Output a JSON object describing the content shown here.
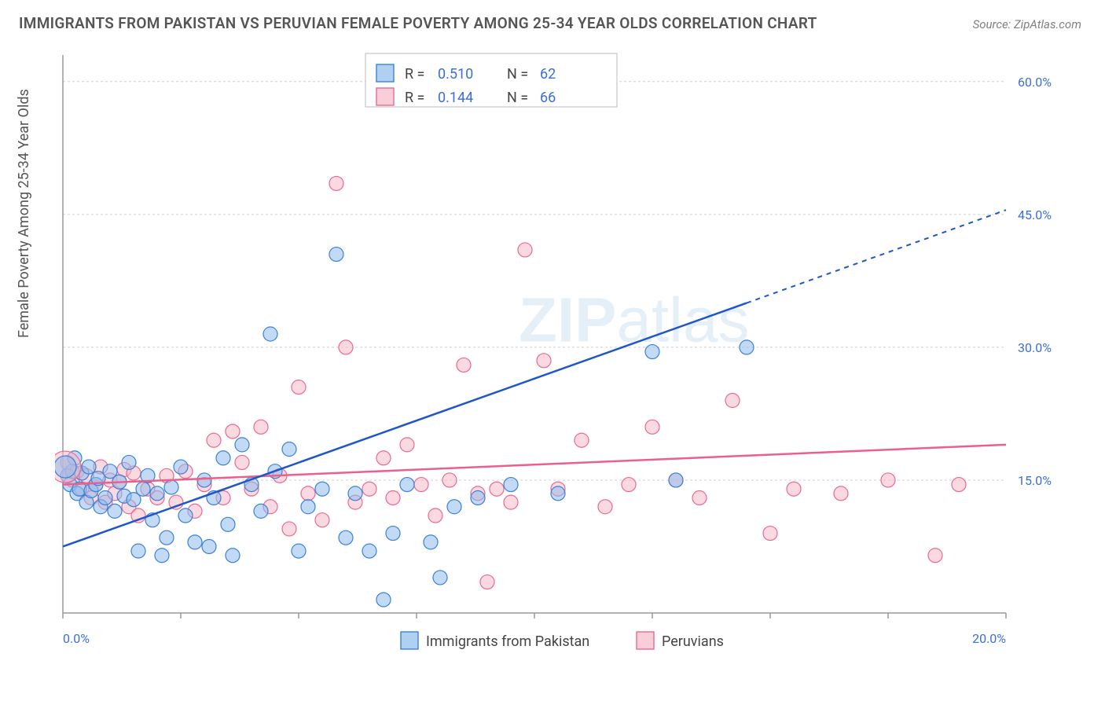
{
  "title": "IMMIGRANTS FROM PAKISTAN VS PERUVIAN FEMALE POVERTY AMONG 25-34 YEAR OLDS CORRELATION CHART",
  "source": "Source: ZipAtlas.com",
  "ylabel": "Female Poverty Among 25-34 Year Olds",
  "watermark": {
    "bold": "ZIP",
    "thin": "atlas"
  },
  "colors": {
    "blue_marker_fill": "#8fbced",
    "blue_marker_stroke": "#3b82d6",
    "pink_marker_fill": "#f7b9c9",
    "pink_marker_stroke": "#e86a94",
    "blue_line": "#1f57c9",
    "pink_line": "#ec5f8b",
    "tick_label": "#3b6fd6",
    "grid": "#d0d0d0",
    "axis": "#999999",
    "title_color": "#555555",
    "background": "#ffffff"
  },
  "chart": {
    "type": "scatter",
    "xlim": [
      0,
      20
    ],
    "ylim": [
      0,
      63
    ],
    "xticks": [
      0,
      2.5,
      5,
      7.5,
      10,
      12.5,
      15,
      17.5,
      20
    ],
    "xticklabels": [
      "0.0%",
      "",
      "",
      "",
      "",
      "",
      "",
      "",
      "20.0%"
    ],
    "yticks": [
      15,
      30,
      45,
      60
    ],
    "yticklabels": [
      "15.0%",
      "30.0%",
      "45.0%",
      "60.0%"
    ],
    "marker_radius": 9,
    "font_size_tick": 16,
    "font_size_label": 18,
    "font_size_title": 19
  },
  "legend_top": {
    "rows": [
      {
        "swatch": "blue",
        "rlabel": "R =",
        "rval": "0.510",
        "nlabel": "N =",
        "nval": "62"
      },
      {
        "swatch": "pink",
        "rlabel": "R =",
        "rval": "0.144",
        "nlabel": "N =",
        "nval": "66"
      }
    ]
  },
  "legend_bottom": {
    "items": [
      {
        "swatch": "blue",
        "label": "Immigrants from Pakistan"
      },
      {
        "swatch": "pink",
        "label": "Peruvians"
      }
    ]
  },
  "series_blue": {
    "name": "Immigrants from Pakistan",
    "points": [
      [
        0.1,
        15.5
      ],
      [
        0.15,
        14.5
      ],
      [
        0.2,
        16.0
      ],
      [
        0.25,
        17.5
      ],
      [
        0.3,
        13.5
      ],
      [
        0.35,
        14.0
      ],
      [
        0.4,
        15.8
      ],
      [
        0.5,
        12.5
      ],
      [
        0.55,
        16.5
      ],
      [
        0.6,
        13.8
      ],
      [
        0.7,
        14.5
      ],
      [
        0.75,
        15.2
      ],
      [
        0.8,
        12.0
      ],
      [
        0.9,
        13.0
      ],
      [
        1.0,
        16.0
      ],
      [
        1.1,
        11.5
      ],
      [
        1.2,
        14.8
      ],
      [
        1.3,
        13.2
      ],
      [
        1.4,
        17.0
      ],
      [
        1.5,
        12.8
      ],
      [
        1.6,
        7.0
      ],
      [
        1.7,
        14.0
      ],
      [
        1.8,
        15.5
      ],
      [
        1.9,
        10.5
      ],
      [
        2.0,
        13.5
      ],
      [
        2.1,
        6.5
      ],
      [
        2.2,
        8.5
      ],
      [
        2.3,
        14.2
      ],
      [
        2.5,
        16.5
      ],
      [
        2.6,
        11.0
      ],
      [
        2.8,
        8.0
      ],
      [
        3.0,
        15.0
      ],
      [
        3.1,
        7.5
      ],
      [
        3.2,
        13.0
      ],
      [
        3.4,
        17.5
      ],
      [
        3.5,
        10.0
      ],
      [
        3.6,
        6.5
      ],
      [
        3.8,
        19.0
      ],
      [
        4.0,
        14.5
      ],
      [
        4.2,
        11.5
      ],
      [
        4.4,
        31.5
      ],
      [
        4.5,
        16.0
      ],
      [
        4.8,
        18.5
      ],
      [
        5.0,
        7.0
      ],
      [
        5.2,
        12.0
      ],
      [
        5.5,
        14.0
      ],
      [
        5.8,
        40.5
      ],
      [
        6.0,
        8.5
      ],
      [
        6.2,
        13.5
      ],
      [
        6.5,
        7.0
      ],
      [
        6.8,
        1.5
      ],
      [
        7.0,
        9.0
      ],
      [
        7.3,
        14.5
      ],
      [
        7.8,
        8.0
      ],
      [
        8.0,
        4.0
      ],
      [
        8.3,
        12.0
      ],
      [
        8.8,
        13.0
      ],
      [
        9.5,
        14.5
      ],
      [
        10.5,
        13.5
      ],
      [
        12.5,
        29.5
      ],
      [
        13.0,
        15.0
      ],
      [
        14.5,
        30.0
      ]
    ],
    "trendline": {
      "x1": 0,
      "y1": 7.5,
      "x2": 14.5,
      "y2": 35.0,
      "x2_dash": 20,
      "y2_dash": 45.5
    }
  },
  "series_pink": {
    "name": "Peruvians",
    "points": [
      [
        0.1,
        17.0
      ],
      [
        0.2,
        15.0
      ],
      [
        0.3,
        16.0
      ],
      [
        0.4,
        14.0
      ],
      [
        0.5,
        15.5
      ],
      [
        0.6,
        13.0
      ],
      [
        0.7,
        14.5
      ],
      [
        0.8,
        16.5
      ],
      [
        0.9,
        12.5
      ],
      [
        1.0,
        15.0
      ],
      [
        1.1,
        13.5
      ],
      [
        1.2,
        14.8
      ],
      [
        1.3,
        16.2
      ],
      [
        1.4,
        12.0
      ],
      [
        1.5,
        15.8
      ],
      [
        1.6,
        11.0
      ],
      [
        1.8,
        14.0
      ],
      [
        2.0,
        13.0
      ],
      [
        2.2,
        15.5
      ],
      [
        2.4,
        12.5
      ],
      [
        2.6,
        16.0
      ],
      [
        2.8,
        11.5
      ],
      [
        3.0,
        14.5
      ],
      [
        3.2,
        19.5
      ],
      [
        3.4,
        13.0
      ],
      [
        3.6,
        20.5
      ],
      [
        3.8,
        17.0
      ],
      [
        4.0,
        14.0
      ],
      [
        4.2,
        21.0
      ],
      [
        4.4,
        12.0
      ],
      [
        4.6,
        15.5
      ],
      [
        4.8,
        9.5
      ],
      [
        5.0,
        25.5
      ],
      [
        5.2,
        13.5
      ],
      [
        5.5,
        10.5
      ],
      [
        5.8,
        48.5
      ],
      [
        6.0,
        30.0
      ],
      [
        6.2,
        12.5
      ],
      [
        6.5,
        14.0
      ],
      [
        6.8,
        17.5
      ],
      [
        7.0,
        13.0
      ],
      [
        7.3,
        19.0
      ],
      [
        7.6,
        14.5
      ],
      [
        7.9,
        11.0
      ],
      [
        8.2,
        15.0
      ],
      [
        8.5,
        28.0
      ],
      [
        8.8,
        13.5
      ],
      [
        9.0,
        3.5
      ],
      [
        9.2,
        14.0
      ],
      [
        9.5,
        12.5
      ],
      [
        9.8,
        41.0
      ],
      [
        10.2,
        28.5
      ],
      [
        10.5,
        14.0
      ],
      [
        11.0,
        19.5
      ],
      [
        11.5,
        12.0
      ],
      [
        12.0,
        14.5
      ],
      [
        12.5,
        21.0
      ],
      [
        13.0,
        15.0
      ],
      [
        13.5,
        13.0
      ],
      [
        14.2,
        24.0
      ],
      [
        15.0,
        9.0
      ],
      [
        15.5,
        14.0
      ],
      [
        16.5,
        13.5
      ],
      [
        17.5,
        15.0
      ],
      [
        18.5,
        6.5
      ],
      [
        19.0,
        14.5
      ]
    ],
    "trendline": {
      "x1": 0,
      "y1": 14.5,
      "x2": 20,
      "y2": 19.0
    }
  }
}
